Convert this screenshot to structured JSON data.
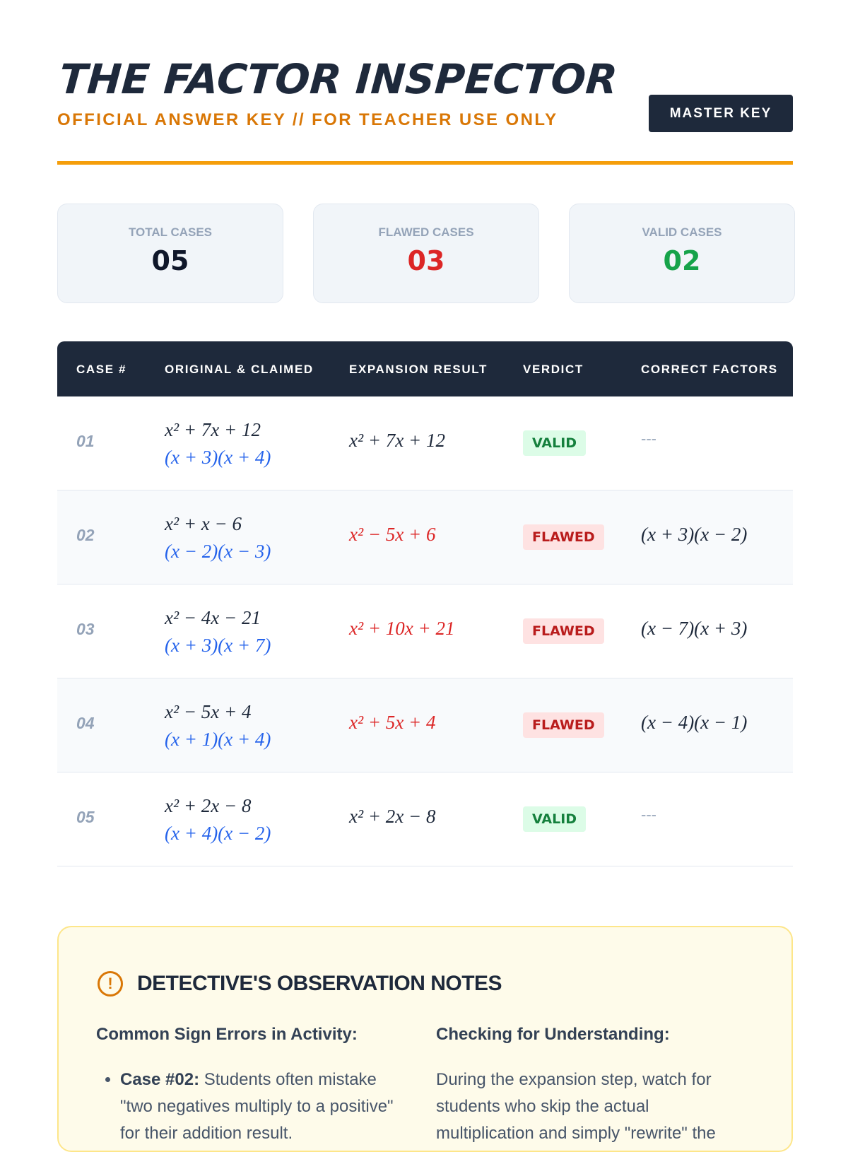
{
  "header": {
    "title": "THE FACTOR INSPECTOR",
    "subtitle": "OFFICIAL ANSWER KEY // FOR TEACHER USE ONLY",
    "badge": "MASTER KEY"
  },
  "stats": [
    {
      "label": "TOTAL CASES",
      "value": "05",
      "color": "#0f172a"
    },
    {
      "label": "FLAWED CASES",
      "value": "03",
      "color": "#dc2626"
    },
    {
      "label": "VALID CASES",
      "value": "02",
      "color": "#16a34a"
    }
  ],
  "table": {
    "headers": [
      "CASE #",
      "ORIGINAL & CLAIMED",
      "EXPANSION RESULT",
      "VERDICT",
      "CORRECT FACTORS"
    ],
    "rows": [
      {
        "case": "01",
        "original": "x² + 7x + 12",
        "claimed": "(x + 3)(x + 4)",
        "expansion": "x² + 7x + 12",
        "verdict": "VALID",
        "correct": "---"
      },
      {
        "case": "02",
        "original": "x² + x − 6",
        "claimed": "(x − 2)(x − 3)",
        "expansion": "x² − 5x + 6",
        "verdict": "FLAWED",
        "correct": "(x + 3)(x − 2)"
      },
      {
        "case": "03",
        "original": "x² − 4x − 21",
        "claimed": "(x + 3)(x + 7)",
        "expansion": "x² + 10x + 21",
        "verdict": "FLAWED",
        "correct": "(x − 7)(x + 3)"
      },
      {
        "case": "04",
        "original": "x² − 5x + 4",
        "claimed": "(x + 1)(x + 4)",
        "expansion": "x² + 5x + 4",
        "verdict": "FLAWED",
        "correct": "(x − 4)(x − 1)"
      },
      {
        "case": "05",
        "original": "x² + 2x − 8",
        "claimed": "(x + 4)(x − 2)",
        "expansion": "x² + 2x − 8",
        "verdict": "VALID",
        "correct": "---"
      }
    ]
  },
  "notes": {
    "title": "DETECTIVE'S OBSERVATION NOTES",
    "left_heading": "Common Sign Errors in Activity:",
    "left_item_label": "Case #02:",
    "left_item_text": " Students often mistake \"two negatives multiply to a positive\" for their addition result.",
    "right_heading": "Checking for Understanding:",
    "right_text": "During the expansion step, watch for students who skip the actual multiplication and simply \"rewrite\" the"
  }
}
